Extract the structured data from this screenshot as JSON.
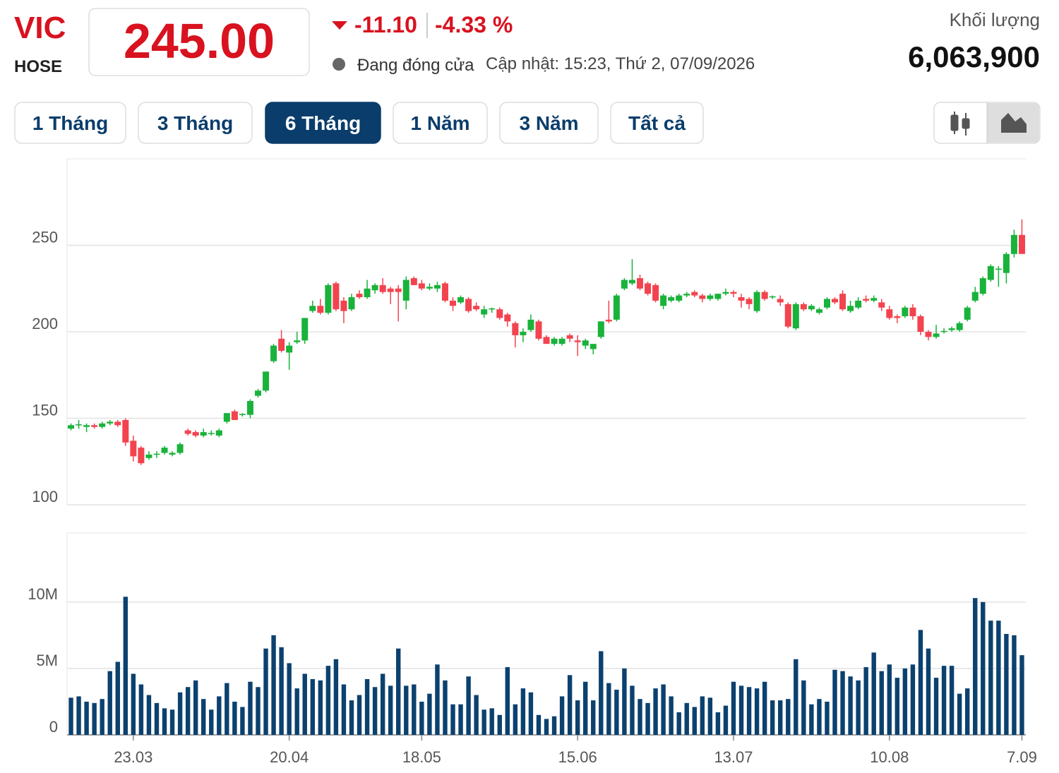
{
  "header": {
    "symbol": "VIC",
    "exchange": "HOSE",
    "price": "245.00",
    "change": "-11.10",
    "change_percent": "-4.33 %",
    "status": "Đang đóng cửa",
    "updated": "Cập nhật: 15:23, Thứ 2, 07/09/2026",
    "volume_label": "Khối lượng",
    "volume": "6,063,900"
  },
  "ranges": {
    "buttons": [
      "1 Tháng",
      "3 Tháng",
      "6 Tháng",
      "1 Năm",
      "3 Năm",
      "Tất cả"
    ],
    "active": 2
  },
  "chart_data": {
    "type": "candlestick",
    "up_color": "#19b23b",
    "down_color": "#f2434f",
    "volume_color": "#0b416f",
    "grid": true,
    "categories": [
      null,
      null,
      null,
      null,
      null,
      null,
      null,
      null,
      "23.03",
      null,
      null,
      null,
      null,
      null,
      null,
      null,
      null,
      null,
      null,
      null,
      null,
      null,
      null,
      null,
      null,
      null,
      null,
      null,
      "20.04",
      null,
      null,
      null,
      null,
      null,
      null,
      null,
      null,
      null,
      null,
      null,
      null,
      null,
      null,
      null,
      null,
      "18.05",
      null,
      null,
      null,
      null,
      null,
      null,
      null,
      null,
      null,
      null,
      null,
      null,
      null,
      null,
      null,
      null,
      null,
      null,
      null,
      "15.06",
      null,
      null,
      null,
      null,
      null,
      null,
      null,
      null,
      null,
      null,
      null,
      null,
      null,
      null,
      null,
      null,
      null,
      null,
      null,
      "13.07",
      null,
      null,
      null,
      null,
      null,
      null,
      null,
      null,
      null,
      null,
      null,
      null,
      null,
      null,
      null,
      null,
      null,
      null,
      null,
      "10.08",
      null,
      null,
      null,
      null,
      null,
      null,
      null,
      null,
      null,
      null,
      null,
      null,
      null,
      null,
      null,
      null,
      "7.09"
    ],
    "open": [
      144,
      146,
      145,
      146,
      145,
      147,
      148,
      149,
      137,
      133,
      127,
      129,
      130,
      129,
      130,
      143,
      142,
      140,
      141,
      140,
      148,
      154,
      152,
      152,
      163,
      166,
      183,
      196,
      188,
      194,
      195,
      212,
      215,
      211,
      228,
      218,
      213,
      222,
      220,
      224,
      227,
      225,
      225,
      218,
      231,
      228,
      225,
      225,
      228,
      218,
      217,
      219,
      215,
      210,
      213,
      213,
      210,
      205,
      198,
      201,
      206,
      197,
      193,
      193,
      198,
      195,
      192,
      190,
      197,
      207,
      207,
      225,
      228,
      231,
      228,
      227,
      215,
      218,
      218,
      221,
      223,
      221,
      219,
      219,
      222,
      223,
      220,
      219,
      212,
      223,
      220,
      219,
      216,
      202,
      216,
      213,
      211,
      214,
      219,
      222,
      212,
      214,
      219,
      218,
      217,
      213,
      209,
      209,
      214,
      209,
      200,
      197,
      200,
      201,
      201,
      207,
      218,
      222,
      230,
      236,
      234,
      245,
      256
    ],
    "high": [
      147,
      149,
      147,
      147,
      148,
      149,
      149,
      150,
      140,
      134,
      131,
      131,
      134,
      131,
      136,
      144,
      143,
      144,
      143,
      144,
      153,
      155,
      153,
      161,
      167,
      177,
      193,
      201,
      194,
      200,
      208,
      218,
      219,
      228,
      229,
      220,
      222,
      224,
      230,
      228,
      231,
      226,
      227,
      232,
      232,
      230,
      228,
      229,
      229,
      220,
      221,
      220,
      217,
      215,
      214,
      214,
      211,
      206,
      202,
      210,
      207,
      198,
      197,
      197,
      199,
      198,
      196,
      193,
      206,
      218,
      222,
      231,
      242,
      233,
      229,
      228,
      222,
      221,
      222,
      223,
      224,
      222,
      222,
      222,
      225,
      224,
      222,
      220,
      224,
      224,
      221,
      221,
      217,
      217,
      217,
      216,
      214,
      220,
      220,
      224,
      218,
      220,
      221,
      221,
      219,
      215,
      210,
      215,
      216,
      210,
      201,
      204,
      202,
      203,
      206,
      215,
      226,
      232,
      239,
      238,
      246,
      259,
      265
    ],
    "low": [
      143,
      144,
      142,
      144,
      144,
      146,
      145,
      134,
      125,
      123,
      126,
      127,
      129,
      128,
      129,
      140,
      139,
      139,
      140,
      139,
      147,
      149,
      151,
      150,
      162,
      165,
      182,
      188,
      178,
      193,
      193,
      211,
      210,
      210,
      212,
      205,
      212,
      219,
      219,
      222,
      222,
      216,
      206,
      213,
      227,
      224,
      224,
      223,
      217,
      212,
      216,
      211,
      212,
      208,
      211,
      207,
      203,
      191,
      194,
      200,
      195,
      193,
      192,
      192,
      194,
      186,
      190,
      187,
      196,
      205,
      206,
      224,
      227,
      224,
      221,
      217,
      213,
      217,
      217,
      220,
      220,
      217,
      218,
      218,
      221,
      220,
      214,
      213,
      211,
      218,
      219,
      215,
      202,
      201,
      212,
      212,
      210,
      213,
      216,
      212,
      211,
      213,
      217,
      217,
      212,
      207,
      205,
      208,
      207,
      198,
      195,
      196,
      199,
      200,
      200,
      206,
      217,
      221,
      229,
      226,
      228,
      243,
      245
    ],
    "close": [
      146,
      146.5,
      146,
      145,
      147,
      148,
      146,
      136,
      128,
      124,
      129,
      129.5,
      133,
      130,
      135,
      141,
      140,
      142,
      141.5,
      143,
      153,
      149,
      152.5,
      160,
      166,
      177,
      192,
      189,
      192,
      195,
      208,
      215,
      211,
      227,
      213,
      212,
      220,
      220,
      225,
      227,
      223,
      223,
      223,
      230,
      227,
      225,
      226,
      227,
      218,
      215,
      220,
      212,
      213,
      213,
      213.5,
      208,
      206,
      198,
      200,
      207,
      196,
      193,
      196,
      196,
      196,
      194,
      195,
      193,
      206,
      206,
      221,
      230,
      230,
      225,
      222,
      218,
      221,
      220,
      221,
      222,
      221,
      219,
      221,
      222,
      223,
      222,
      218,
      216,
      223,
      219,
      220.5,
      217,
      203,
      216,
      213,
      215,
      213,
      219,
      217,
      213,
      215,
      218,
      218,
      219.5,
      214,
      208,
      208,
      214,
      209,
      200,
      197,
      199,
      200.5,
      202,
      205,
      214,
      223,
      231,
      238,
      236.5,
      245,
      256,
      245
    ],
    "volume": [
      2800000,
      2900000,
      2500000,
      2400000,
      2700000,
      4800000,
      5500000,
      10400000,
      4600000,
      3800000,
      3000000,
      2400000,
      2000000,
      1900000,
      3200000,
      3600000,
      4100000,
      2700000,
      1900000,
      2900000,
      3900000,
      2500000,
      2100000,
      4000000,
      3600000,
      6500000,
      7500000,
      6600000,
      5400000,
      3500000,
      4600000,
      4200000,
      4100000,
      5200000,
      5700000,
      3800000,
      2600000,
      3000000,
      4200000,
      3600000,
      4600000,
      3700000,
      6500000,
      3700000,
      3800000,
      2500000,
      3100000,
      5300000,
      4100000,
      2300000,
      2300000,
      4400000,
      3000000,
      1900000,
      2000000,
      1500000,
      5100000,
      2300000,
      3500000,
      3200000,
      1500000,
      1200000,
      1400000,
      2900000,
      4500000,
      2600000,
      4000000,
      2600000,
      6300000,
      3900000,
      3400000,
      5000000,
      3700000,
      2700000,
      2400000,
      3500000,
      3800000,
      2900000,
      1700000,
      2400000,
      2100000,
      2900000,
      2800000,
      1700000,
      2200000,
      4000000,
      3700000,
      3600000,
      3500000,
      4000000,
      2600000,
      2600000,
      2700000,
      5700000,
      4100000,
      2300000,
      2700000,
      2500000,
      4900000,
      4800000,
      4400000,
      4100000,
      5100000,
      6200000,
      4800000,
      5300000,
      4300000,
      5000000,
      5300000,
      7900000,
      6500000,
      4300000,
      5200000,
      5200000,
      3100000,
      3500000,
      10300000,
      10000000,
      8600000,
      8600000,
      7600000,
      7500000,
      6000000
    ],
    "ylim": [
      100,
      300
    ],
    "yticks": [
      100,
      150,
      200,
      250
    ],
    "volume_ylim": [
      0,
      15200000
    ],
    "volume_yticks": [
      0,
      {
        "value": 5000000,
        "label": "5M"
      },
      {
        "value": 10000000,
        "label": "10M"
      }
    ]
  }
}
